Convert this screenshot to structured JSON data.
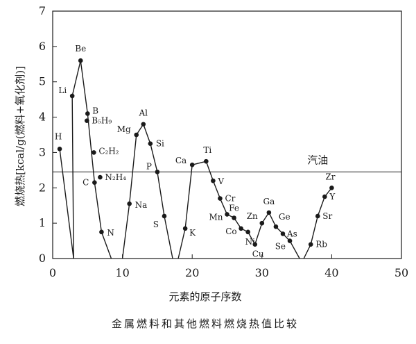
{
  "chart_data": {
    "type": "line",
    "caption": "金属燃料和其他燃料燃烧热值比较",
    "xlabel": "元素的原子序数",
    "ylabel": "燃烧热[kcal/g(燃料+氧化剂)]",
    "xlim": [
      0,
      50
    ],
    "ylim": [
      0,
      7
    ],
    "xticks": [
      "0",
      "10",
      "20",
      "30",
      "40",
      "50"
    ],
    "yticks": [
      "0",
      "1",
      "2",
      "3",
      "4",
      "5",
      "6",
      "7"
    ],
    "grid": false,
    "reference_line": {
      "label": "汽油",
      "y": 2.45
    },
    "series": [
      {
        "segments": [
          [
            [
              1,
              3.1
            ],
            [
              3,
              0
            ]
          ],
          [
            [
              3,
              0
            ],
            [
              2.8,
              4.6
            ],
            [
              4,
              5.6
            ],
            [
              5,
              4.1
            ],
            [
              6,
              2.15
            ],
            [
              7,
              0.75
            ],
            [
              8.4,
              0
            ]
          ],
          [
            [
              10,
              0
            ],
            [
              11,
              1.55
            ],
            [
              12,
              3.5
            ],
            [
              13,
              3.8
            ],
            [
              14,
              3.25
            ],
            [
              15,
              2.45
            ],
            [
              16,
              1.2
            ],
            [
              17.2,
              0
            ]
          ],
          [
            [
              18,
              0
            ],
            [
              19,
              0.85
            ],
            [
              20,
              2.65
            ],
            [
              22,
              2.75
            ],
            [
              23,
              2.2
            ],
            [
              24,
              1.7
            ],
            [
              25,
              1.25
            ],
            [
              26,
              1.15
            ],
            [
              27,
              0.85
            ],
            [
              28,
              0.75
            ],
            [
              29,
              0.4
            ],
            [
              30,
              1.0
            ],
            [
              31,
              1.3
            ],
            [
              32,
              0.9
            ],
            [
              33,
              0.7
            ],
            [
              34,
              0.5
            ],
            [
              35.4,
              0
            ]
          ],
          [
            [
              36,
              0
            ],
            [
              37,
              0.4
            ],
            [
              38,
              1.2
            ],
            [
              39,
              1.75
            ],
            [
              40,
              2.0
            ]
          ]
        ]
      }
    ],
    "points": [
      {
        "label": "H",
        "x": 1,
        "y": 3.1
      },
      {
        "label": "Li",
        "x": 2.8,
        "y": 4.6
      },
      {
        "label": "Be",
        "x": 4,
        "y": 5.6
      },
      {
        "label": "B",
        "x": 5,
        "y": 4.1
      },
      {
        "label": "B₅H₉",
        "x": 4.9,
        "y": 3.9
      },
      {
        "label": "C₂H₂",
        "x": 5.9,
        "y": 3.0
      },
      {
        "label": "C",
        "x": 6,
        "y": 2.15
      },
      {
        "label": "N₂H₄",
        "x": 6.8,
        "y": 2.3
      },
      {
        "label": "N",
        "x": 7,
        "y": 0.75
      },
      {
        "label": "Na",
        "x": 11,
        "y": 1.55
      },
      {
        "label": "Mg",
        "x": 12,
        "y": 3.5
      },
      {
        "label": "Al",
        "x": 13,
        "y": 3.8
      },
      {
        "label": "Si",
        "x": 14,
        "y": 3.25
      },
      {
        "label": "P",
        "x": 15,
        "y": 2.45
      },
      {
        "label": "S",
        "x": 16,
        "y": 1.2
      },
      {
        "label": "K",
        "x": 19,
        "y": 0.85
      },
      {
        "label": "Ca",
        "x": 20,
        "y": 2.65
      },
      {
        "label": "Ti",
        "x": 22,
        "y": 2.75
      },
      {
        "label": "V",
        "x": 23,
        "y": 2.2
      },
      {
        "label": "Cr",
        "x": 24,
        "y": 1.7
      },
      {
        "label": "Mn",
        "x": 25,
        "y": 1.25
      },
      {
        "label": "Fe",
        "x": 26,
        "y": 1.15
      },
      {
        "label": "Co",
        "x": 27,
        "y": 0.85
      },
      {
        "label": "Ni",
        "x": 28,
        "y": 0.75
      },
      {
        "label": "Cu",
        "x": 29,
        "y": 0.4
      },
      {
        "label": "Zn",
        "x": 30,
        "y": 1.0
      },
      {
        "label": "Ga",
        "x": 31,
        "y": 1.3
      },
      {
        "label": "Ge",
        "x": 32,
        "y": 0.9
      },
      {
        "label": "As",
        "x": 33,
        "y": 0.7
      },
      {
        "label": "Se",
        "x": 34,
        "y": 0.5
      },
      {
        "label": "Rb",
        "x": 37,
        "y": 0.4
      },
      {
        "label": "Sr",
        "x": 38,
        "y": 1.2
      },
      {
        "label": "Y",
        "x": 39,
        "y": 1.75
      },
      {
        "label": "Zr",
        "x": 40,
        "y": 2.0
      }
    ]
  }
}
